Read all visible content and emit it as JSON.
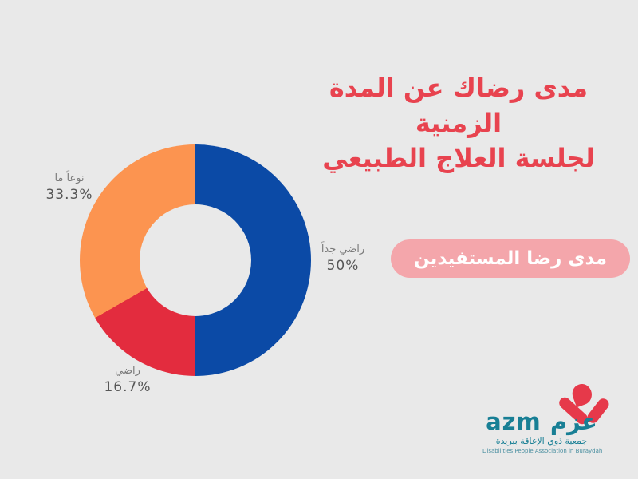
{
  "page": {
    "background": "#e9e9e9"
  },
  "title": {
    "line1": "مدى رضاك عن المدة الزمنية",
    "line2": "لجلسة العلاج الطبيعي",
    "color": "#e8434f"
  },
  "badge": {
    "label": "مدى رضا المستفيدين",
    "background": "#f4a6ab",
    "text_color": "#ffffff"
  },
  "chart_data": {
    "type": "pie",
    "subtype": "donut",
    "title": "مدى رضاك عن المدة الزمنية لجلسة العلاج الطبيعي",
    "start_angle_deg": 0,
    "direction": "clockwise",
    "hole_ratio": 0.48,
    "legend_position": "outside-labels",
    "slices": [
      {
        "label": "راضي جداً",
        "value": 50,
        "display": "50%",
        "color": "#0b4aa6",
        "label_position": "right"
      },
      {
        "label": "راضي",
        "value": 16.7,
        "display": "16.7%",
        "color": "#e32c3e",
        "label_position": "bottom-left"
      },
      {
        "label": "نوعاً ما",
        "value": 33.3,
        "display": "33.3%",
        "color": "#fc9450",
        "label_position": "top-left"
      }
    ]
  },
  "logo": {
    "latin": "azm",
    "arabic": "عزم",
    "wordmark": "azm عزم",
    "subtitle_arabic": "جمعية ذوي الإعاقة ببريدة",
    "subtitle_english": "Disabilities People Association in Buraydah",
    "teal": "#187f95",
    "red": "#e6394a"
  }
}
